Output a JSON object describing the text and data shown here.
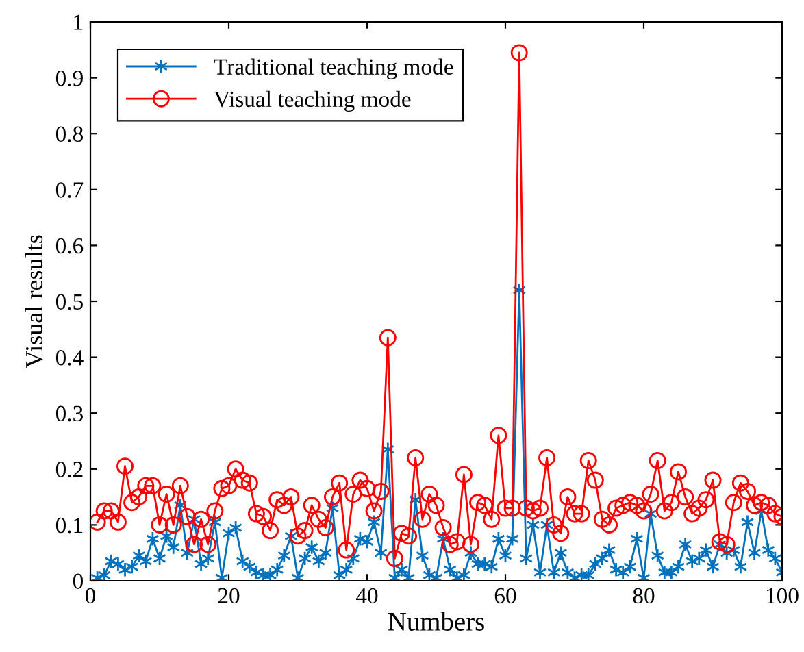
{
  "chart_data": {
    "type": "line",
    "xlabel": "Numbers",
    "ylabel": "Visual results",
    "x": [
      1,
      2,
      3,
      4,
      5,
      6,
      7,
      8,
      9,
      10,
      11,
      12,
      13,
      14,
      15,
      16,
      17,
      18,
      19,
      20,
      21,
      22,
      23,
      24,
      25,
      26,
      27,
      28,
      29,
      30,
      31,
      32,
      33,
      34,
      35,
      36,
      37,
      38,
      39,
      40,
      41,
      42,
      43,
      44,
      45,
      46,
      47,
      48,
      49,
      50,
      51,
      52,
      53,
      54,
      55,
      56,
      57,
      58,
      59,
      60,
      61,
      62,
      63,
      64,
      65,
      66,
      67,
      68,
      69,
      70,
      71,
      72,
      73,
      74,
      75,
      76,
      77,
      78,
      79,
      80,
      81,
      82,
      83,
      84,
      85,
      86,
      87,
      88,
      89,
      90,
      91,
      92,
      93,
      94,
      95,
      96,
      97,
      98,
      99,
      100
    ],
    "series": [
      {
        "name": "Traditional teaching mode",
        "color": "#0072bd",
        "marker": "cross",
        "values": [
          0.005,
          0.01,
          0.035,
          0.03,
          0.02,
          0.025,
          0.045,
          0.035,
          0.075,
          0.04,
          0.08,
          0.06,
          0.135,
          0.05,
          0.11,
          0.03,
          0.04,
          0.105,
          0.005,
          0.085,
          0.095,
          0.035,
          0.025,
          0.015,
          0.01,
          0.01,
          0.02,
          0.045,
          0.08,
          0.005,
          0.04,
          0.06,
          0.035,
          0.05,
          0.13,
          0.01,
          0.02,
          0.04,
          0.075,
          0.07,
          0.105,
          0.05,
          0.235,
          0.005,
          0.02,
          0.005,
          0.145,
          0.045,
          0.01,
          0.005,
          0.075,
          0.02,
          0.005,
          0.01,
          0.05,
          0.03,
          0.03,
          0.025,
          0.075,
          0.045,
          0.075,
          0.52,
          0.04,
          0.1,
          0.015,
          0.1,
          0.015,
          0.05,
          0.015,
          0.005,
          0.01,
          0.01,
          0.03,
          0.04,
          0.055,
          0.02,
          0.015,
          0.025,
          0.075,
          0.005,
          0.12,
          0.045,
          0.015,
          0.015,
          0.025,
          0.065,
          0.035,
          0.04,
          0.055,
          0.025,
          0.065,
          0.05,
          0.055,
          0.025,
          0.105,
          0.05,
          0.125,
          0.055,
          0.04,
          0.015
        ]
      },
      {
        "name": "Visual teaching mode",
        "color": "#ff0000",
        "marker": "circle",
        "values": [
          0.105,
          0.125,
          0.125,
          0.105,
          0.205,
          0.14,
          0.15,
          0.17,
          0.17,
          0.1,
          0.155,
          0.1,
          0.17,
          0.115,
          0.065,
          0.11,
          0.065,
          0.125,
          0.165,
          0.17,
          0.2,
          0.18,
          0.175,
          0.12,
          0.115,
          0.09,
          0.145,
          0.135,
          0.15,
          0.08,
          0.09,
          0.135,
          0.11,
          0.095,
          0.15,
          0.175,
          0.055,
          0.155,
          0.18,
          0.165,
          0.125,
          0.16,
          0.435,
          0.04,
          0.085,
          0.08,
          0.22,
          0.11,
          0.155,
          0.135,
          0.095,
          0.065,
          0.07,
          0.19,
          0.065,
          0.14,
          0.135,
          0.11,
          0.26,
          0.13,
          0.13,
          0.945,
          0.13,
          0.125,
          0.13,
          0.22,
          0.1,
          0.085,
          0.15,
          0.12,
          0.12,
          0.215,
          0.18,
          0.11,
          0.1,
          0.13,
          0.135,
          0.14,
          0.135,
          0.125,
          0.155,
          0.215,
          0.125,
          0.14,
          0.195,
          0.15,
          0.12,
          0.13,
          0.145,
          0.18,
          0.07,
          0.065,
          0.14,
          0.175,
          0.16,
          0.135,
          0.14,
          0.135,
          0.12,
          0.115
        ]
      }
    ],
    "xlim": [
      0,
      100
    ],
    "xticks": [
      0,
      20,
      40,
      60,
      80,
      100
    ],
    "ylim": [
      0,
      1
    ],
    "yticks": [
      0,
      0.1,
      0.2,
      0.3,
      0.4,
      0.5,
      0.6,
      0.7,
      0.8,
      0.9,
      1
    ],
    "grid": false,
    "legend": "top left",
    "line_style": "solid"
  }
}
